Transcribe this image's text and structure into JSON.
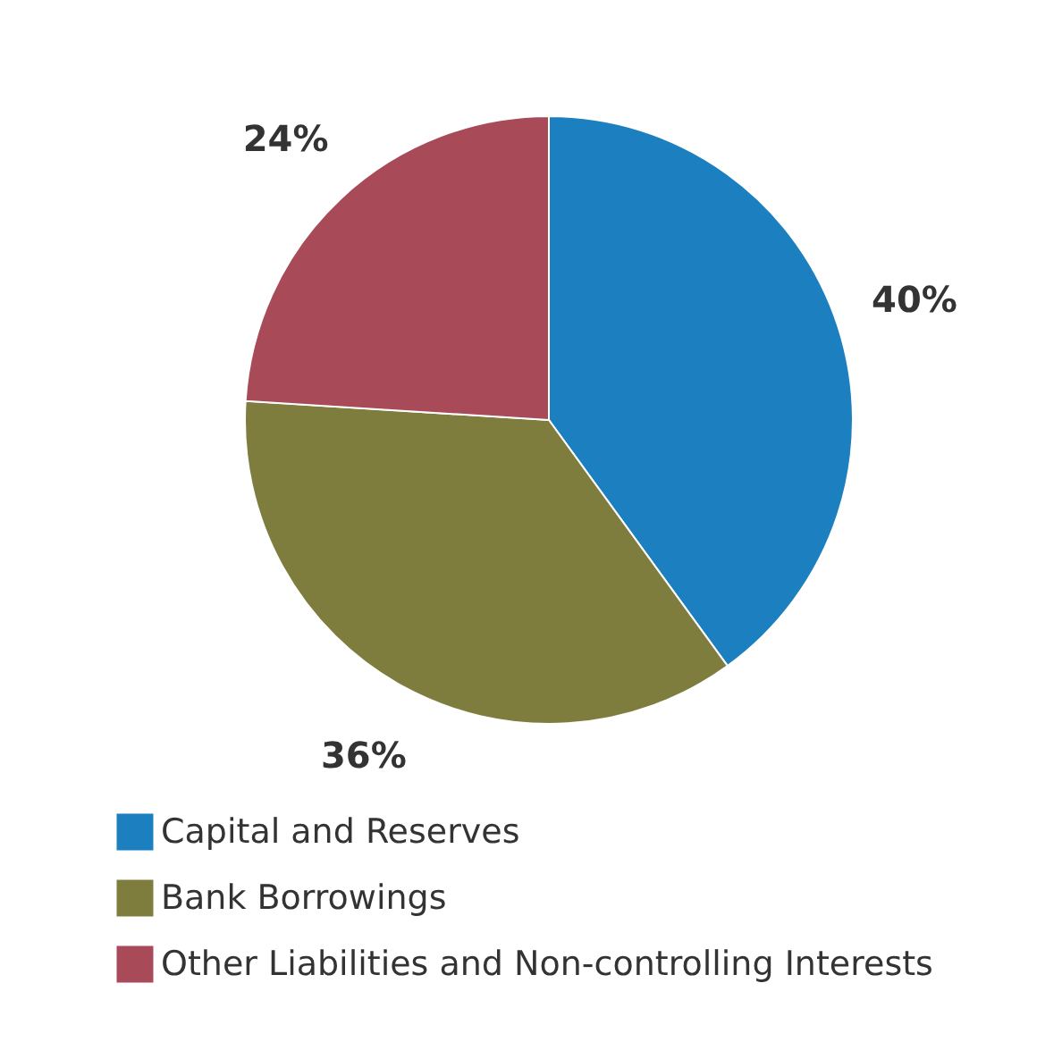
{
  "chart_data": {
    "type": "pie",
    "categories": [
      "Capital and Reserves",
      "Bank Borrowings",
      "Other Liabilities and Non-controlling Interests"
    ],
    "values": [
      40,
      36,
      24
    ],
    "colors": [
      "#1b7fc0",
      "#7f7d3e",
      "#a84a58"
    ],
    "value_labels": [
      "40%",
      "36%",
      "24%"
    ],
    "legend": "bottom left"
  }
}
